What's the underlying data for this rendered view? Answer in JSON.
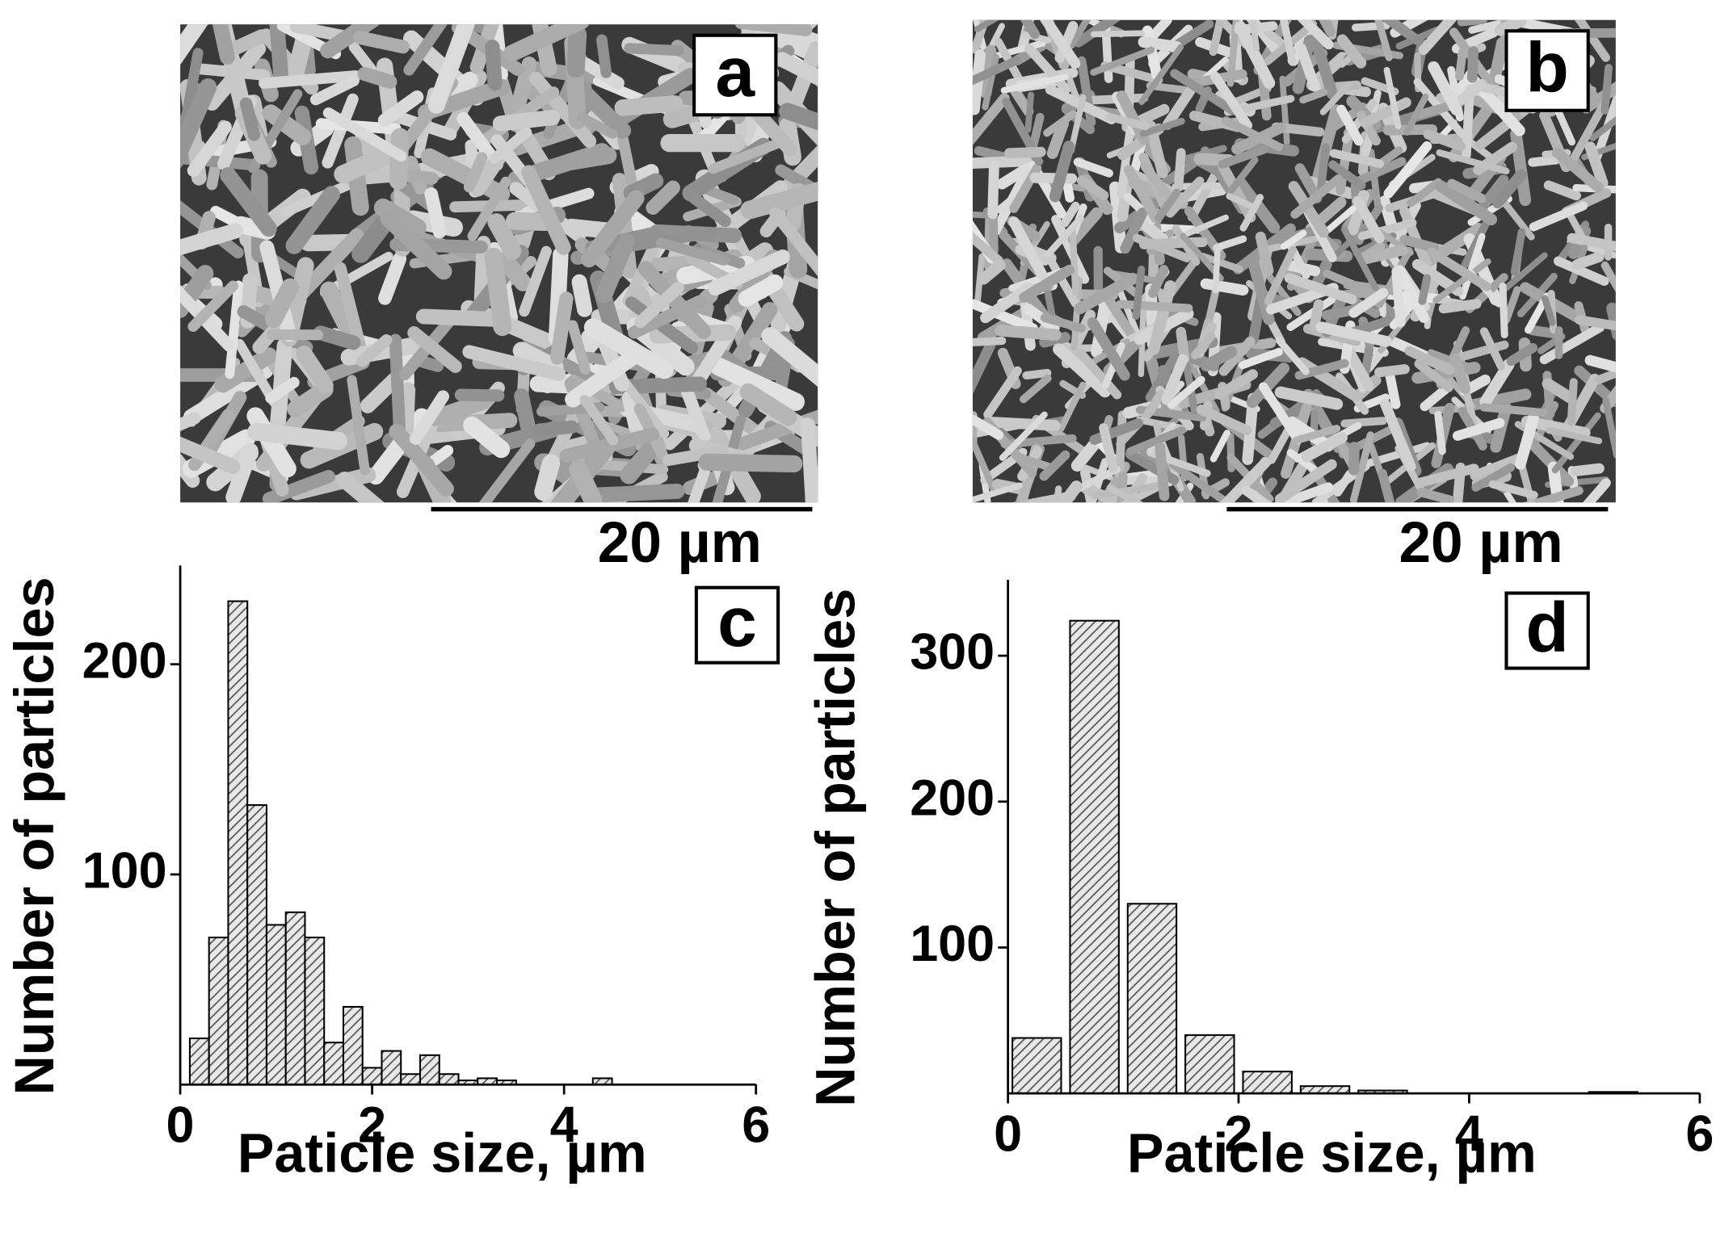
{
  "images": [
    {
      "panel_label": "a",
      "scale_bar": "20 µm"
    },
    {
      "panel_label": "b",
      "scale_bar": "20 µm"
    }
  ],
  "chart_data": [
    {
      "type": "histogram",
      "panel_label": "c",
      "x_label": "Paticle size, µm",
      "y_label": "Number of particles",
      "bins": [
        0.1,
        0.3,
        0.5,
        0.7,
        0.9,
        1.1,
        1.3,
        1.5,
        1.7,
        1.9,
        2.1,
        2.3,
        2.5,
        2.7,
        2.9,
        3.1,
        3.3,
        3.5,
        3.7,
        3.9,
        4.1,
        4.3,
        4.5
      ],
      "counts": [
        22,
        70,
        230,
        133,
        76,
        82,
        70,
        20,
        37,
        8,
        16,
        5,
        14,
        5,
        2,
        3,
        2,
        0,
        0,
        0,
        0,
        3
      ],
      "color": "#555555",
      "xlim": [
        0,
        6
      ],
      "xticks": [
        0,
        2,
        4,
        6
      ],
      "ylim": [
        0,
        247
      ],
      "yticks": [
        100,
        200
      ]
    },
    {
      "type": "histogram",
      "panel_label": "d",
      "x_label": "Paticle size, µm",
      "y_label": "Number of particles",
      "bins": [
        0,
        0.5,
        1,
        1.5,
        2,
        2.5,
        3,
        3.5,
        4,
        4.5,
        5,
        5.5
      ],
      "counts": [
        38,
        324,
        130,
        40,
        15,
        5,
        2,
        0,
        0,
        0,
        1
      ],
      "color": "#555555",
      "xlim": [
        0,
        6
      ],
      "xticks": [
        0,
        2,
        4,
        6
      ],
      "ylim": [
        0,
        352
      ],
      "yticks": [
        100,
        200,
        300
      ]
    }
  ]
}
